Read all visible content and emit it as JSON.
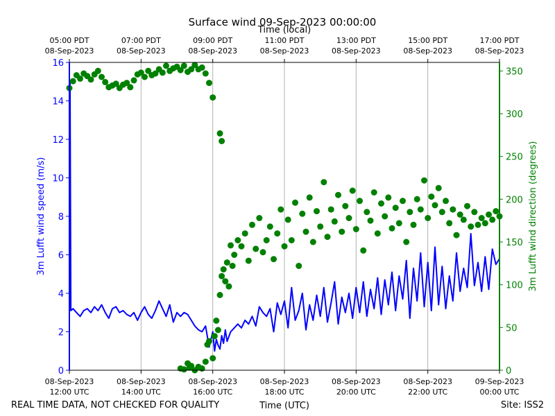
{
  "chart_data": {
    "type": "line+scatter",
    "title": "Surface wind 09-Sep-2023 00:00:00",
    "xlabel_bottom": "Time (UTC)",
    "xlabel_top": "Time (local)",
    "ylabel_left": "3m Lufft wind speed (m/s)",
    "ylabel_right": "3m Lufft wind direction (degrees)",
    "footer_left": "REAL TIME DATA, NOT CHECKED FOR QUALITY",
    "footer_right": "Site: ISS2",
    "colors": {
      "speed": "#0000ff",
      "direction": "#008000",
      "grid": "#b0b0b0",
      "axis": "#000000"
    },
    "x_range_hours": [
      12,
      24
    ],
    "ylim_left": [
      0,
      16
    ],
    "ylim_right": [
      0,
      360
    ],
    "y_ticks_left": [
      0,
      2,
      4,
      6,
      8,
      10,
      12,
      14,
      16
    ],
    "y_ticks_right": [
      0,
      50,
      100,
      150,
      200,
      250,
      300,
      350
    ],
    "x_ticks_bottom": [
      {
        "h": 12,
        "l1": "08-Sep-2023",
        "l2": "12:00 UTC"
      },
      {
        "h": 14,
        "l1": "08-Sep-2023",
        "l2": "14:00 UTC"
      },
      {
        "h": 16,
        "l1": "08-Sep-2023",
        "l2": "16:00 UTC"
      },
      {
        "h": 18,
        "l1": "08-Sep-2023",
        "l2": "18:00 UTC"
      },
      {
        "h": 20,
        "l1": "08-Sep-2023",
        "l2": "20:00 UTC"
      },
      {
        "h": 22,
        "l1": "08-Sep-2023",
        "l2": "22:00 UTC"
      },
      {
        "h": 24,
        "l1": "09-Sep-2023",
        "l2": "00:00 UTC"
      }
    ],
    "x_ticks_top": [
      {
        "h": 12,
        "l1": "05:00 PDT",
        "l2": "08-Sep-2023"
      },
      {
        "h": 14,
        "l1": "07:00 PDT",
        "l2": "08-Sep-2023"
      },
      {
        "h": 16,
        "l1": "09:00 PDT",
        "l2": "08-Sep-2023"
      },
      {
        "h": 18,
        "l1": "11:00 PDT",
        "l2": "08-Sep-2023"
      },
      {
        "h": 20,
        "l1": "13:00 PDT",
        "l2": "08-Sep-2023"
      },
      {
        "h": 22,
        "l1": "15:00 PDT",
        "l2": "08-Sep-2023"
      },
      {
        "h": 24,
        "l1": "17:00 PDT",
        "l2": "08-Sep-2023"
      }
    ],
    "series": [
      {
        "name": "3m Lufft wind speed",
        "axis": "left",
        "style": "line",
        "points": [
          [
            12.0,
            14.8
          ],
          [
            12.02,
            14.9
          ],
          [
            12.04,
            3.1
          ],
          [
            12.1,
            3.2
          ],
          [
            12.2,
            3.0
          ],
          [
            12.3,
            2.8
          ],
          [
            12.4,
            3.1
          ],
          [
            12.5,
            3.2
          ],
          [
            12.6,
            3.0
          ],
          [
            12.7,
            3.3
          ],
          [
            12.8,
            3.1
          ],
          [
            12.9,
            3.4
          ],
          [
            13.0,
            3.0
          ],
          [
            13.1,
            2.7
          ],
          [
            13.2,
            3.2
          ],
          [
            13.3,
            3.3
          ],
          [
            13.4,
            3.0
          ],
          [
            13.5,
            3.1
          ],
          [
            13.6,
            2.9
          ],
          [
            13.7,
            2.8
          ],
          [
            13.8,
            3.0
          ],
          [
            13.9,
            2.6
          ],
          [
            14.0,
            3.0
          ],
          [
            14.1,
            3.3
          ],
          [
            14.2,
            2.9
          ],
          [
            14.3,
            2.7
          ],
          [
            14.4,
            3.1
          ],
          [
            14.5,
            3.6
          ],
          [
            14.6,
            3.2
          ],
          [
            14.7,
            2.8
          ],
          [
            14.8,
            3.4
          ],
          [
            14.9,
            2.5
          ],
          [
            15.0,
            3.0
          ],
          [
            15.1,
            2.8
          ],
          [
            15.2,
            3.0
          ],
          [
            15.3,
            2.9
          ],
          [
            15.4,
            2.6
          ],
          [
            15.5,
            2.3
          ],
          [
            15.6,
            2.1
          ],
          [
            15.7,
            2.0
          ],
          [
            15.8,
            2.3
          ],
          [
            15.9,
            1.2
          ],
          [
            16.0,
            2.0
          ],
          [
            16.05,
            1.0
          ],
          [
            16.1,
            1.6
          ],
          [
            16.15,
            1.3
          ],
          [
            16.2,
            1.1
          ],
          [
            16.25,
            1.8
          ],
          [
            16.3,
            1.4
          ],
          [
            16.35,
            2.1
          ],
          [
            16.4,
            1.5
          ],
          [
            16.5,
            2.0
          ],
          [
            16.6,
            2.2
          ],
          [
            16.7,
            2.4
          ],
          [
            16.8,
            2.2
          ],
          [
            16.9,
            2.6
          ],
          [
            17.0,
            2.4
          ],
          [
            17.1,
            2.8
          ],
          [
            17.2,
            2.3
          ],
          [
            17.3,
            3.3
          ],
          [
            17.4,
            3.0
          ],
          [
            17.5,
            2.8
          ],
          [
            17.6,
            3.2
          ],
          [
            17.7,
            2.0
          ],
          [
            17.8,
            3.5
          ],
          [
            17.9,
            2.9
          ],
          [
            18.0,
            3.6
          ],
          [
            18.1,
            2.2
          ],
          [
            18.2,
            4.3
          ],
          [
            18.3,
            2.6
          ],
          [
            18.4,
            3.1
          ],
          [
            18.5,
            4.0
          ],
          [
            18.6,
            2.1
          ],
          [
            18.7,
            3.4
          ],
          [
            18.8,
            2.6
          ],
          [
            18.9,
            3.9
          ],
          [
            19.0,
            2.8
          ],
          [
            19.1,
            4.3
          ],
          [
            19.2,
            2.5
          ],
          [
            19.3,
            3.5
          ],
          [
            19.4,
            4.6
          ],
          [
            19.5,
            2.4
          ],
          [
            19.6,
            3.8
          ],
          [
            19.7,
            3.0
          ],
          [
            19.8,
            4.0
          ],
          [
            19.9,
            2.7
          ],
          [
            20.0,
            4.3
          ],
          [
            20.1,
            3.0
          ],
          [
            20.2,
            4.6
          ],
          [
            20.3,
            2.8
          ],
          [
            20.4,
            4.2
          ],
          [
            20.5,
            3.2
          ],
          [
            20.6,
            4.8
          ],
          [
            20.7,
            2.9
          ],
          [
            20.8,
            4.7
          ],
          [
            20.9,
            3.4
          ],
          [
            21.0,
            5.1
          ],
          [
            21.1,
            3.1
          ],
          [
            21.2,
            4.9
          ],
          [
            21.3,
            3.7
          ],
          [
            21.4,
            5.7
          ],
          [
            21.5,
            2.7
          ],
          [
            21.6,
            5.3
          ],
          [
            21.7,
            3.6
          ],
          [
            21.8,
            6.1
          ],
          [
            21.9,
            3.3
          ],
          [
            22.0,
            5.6
          ],
          [
            22.1,
            3.1
          ],
          [
            22.2,
            6.4
          ],
          [
            22.3,
            3.4
          ],
          [
            22.4,
            5.4
          ],
          [
            22.5,
            3.2
          ],
          [
            22.6,
            4.9
          ],
          [
            22.7,
            3.6
          ],
          [
            22.8,
            6.1
          ],
          [
            22.9,
            4.1
          ],
          [
            23.0,
            5.3
          ],
          [
            23.1,
            4.3
          ],
          [
            23.2,
            7.1
          ],
          [
            23.3,
            4.4
          ],
          [
            23.4,
            5.6
          ],
          [
            23.5,
            4.1
          ],
          [
            23.6,
            5.9
          ],
          [
            23.7,
            4.2
          ],
          [
            23.8,
            6.3
          ],
          [
            23.9,
            5.5
          ],
          [
            24.0,
            5.8
          ]
        ]
      },
      {
        "name": "3m Lufft wind direction",
        "axis": "right",
        "style": "scatter",
        "points": [
          [
            12.0,
            330
          ],
          [
            12.1,
            338
          ],
          [
            12.2,
            345
          ],
          [
            12.3,
            341
          ],
          [
            12.4,
            347
          ],
          [
            12.5,
            344
          ],
          [
            12.6,
            340
          ],
          [
            12.7,
            346
          ],
          [
            12.8,
            350
          ],
          [
            12.9,
            343
          ],
          [
            13.0,
            337
          ],
          [
            13.1,
            331
          ],
          [
            13.2,
            333
          ],
          [
            13.3,
            335
          ],
          [
            13.4,
            330
          ],
          [
            13.5,
            334
          ],
          [
            13.6,
            336
          ],
          [
            13.7,
            331
          ],
          [
            13.8,
            339
          ],
          [
            13.9,
            346
          ],
          [
            14.0,
            348
          ],
          [
            14.1,
            343
          ],
          [
            14.2,
            350
          ],
          [
            14.3,
            345
          ],
          [
            14.4,
            347
          ],
          [
            14.5,
            352
          ],
          [
            14.6,
            348
          ],
          [
            14.7,
            356
          ],
          [
            14.8,
            350
          ],
          [
            14.9,
            353
          ],
          [
            15.0,
            355
          ],
          [
            15.1,
            351
          ],
          [
            15.2,
            356
          ],
          [
            15.3,
            349
          ],
          [
            15.4,
            352
          ],
          [
            15.5,
            357
          ],
          [
            15.6,
            352
          ],
          [
            15.7,
            354
          ],
          [
            15.8,
            347
          ],
          [
            15.9,
            336
          ],
          [
            16.0,
            319
          ],
          [
            16.2,
            277
          ],
          [
            16.25,
            268
          ],
          [
            15.1,
            2
          ],
          [
            15.2,
            1
          ],
          [
            15.3,
            8
          ],
          [
            15.35,
            3
          ],
          [
            15.4,
            5
          ],
          [
            15.5,
            0
          ],
          [
            15.6,
            4
          ],
          [
            15.7,
            2
          ],
          [
            15.8,
            10
          ],
          [
            15.85,
            30
          ],
          [
            15.9,
            34
          ],
          [
            16.0,
            14
          ],
          [
            16.05,
            40
          ],
          [
            16.1,
            58
          ],
          [
            16.15,
            47
          ],
          [
            16.2,
            88
          ],
          [
            16.25,
            110
          ],
          [
            16.3,
            118
          ],
          [
            16.35,
            104
          ],
          [
            16.4,
            126
          ],
          [
            16.45,
            98
          ],
          [
            16.5,
            146
          ],
          [
            16.55,
            122
          ],
          [
            16.6,
            135
          ],
          [
            16.7,
            152
          ],
          [
            16.8,
            145
          ],
          [
            16.9,
            160
          ],
          [
            17.0,
            128
          ],
          [
            17.1,
            170
          ],
          [
            17.2,
            142
          ],
          [
            17.3,
            178
          ],
          [
            17.4,
            138
          ],
          [
            17.5,
            152
          ],
          [
            17.6,
            168
          ],
          [
            17.7,
            130
          ],
          [
            17.8,
            160
          ],
          [
            17.9,
            188
          ],
          [
            18.0,
            145
          ],
          [
            18.1,
            176
          ],
          [
            18.2,
            152
          ],
          [
            18.3,
            196
          ],
          [
            18.4,
            122
          ],
          [
            18.5,
            183
          ],
          [
            18.6,
            162
          ],
          [
            18.7,
            202
          ],
          [
            18.8,
            150
          ],
          [
            18.9,
            186
          ],
          [
            19.0,
            168
          ],
          [
            19.1,
            220
          ],
          [
            19.2,
            156
          ],
          [
            19.3,
            188
          ],
          [
            19.4,
            174
          ],
          [
            19.5,
            205
          ],
          [
            19.6,
            162
          ],
          [
            19.7,
            192
          ],
          [
            19.8,
            178
          ],
          [
            19.9,
            210
          ],
          [
            20.0,
            165
          ],
          [
            20.1,
            198
          ],
          [
            20.2,
            140
          ],
          [
            20.3,
            185
          ],
          [
            20.4,
            175
          ],
          [
            20.5,
            208
          ],
          [
            20.6,
            160
          ],
          [
            20.7,
            195
          ],
          [
            20.8,
            180
          ],
          [
            20.9,
            202
          ],
          [
            21.0,
            166
          ],
          [
            21.1,
            190
          ],
          [
            21.2,
            172
          ],
          [
            21.3,
            198
          ],
          [
            21.4,
            150
          ],
          [
            21.5,
            185
          ],
          [
            21.6,
            170
          ],
          [
            21.7,
            200
          ],
          [
            21.8,
            188
          ],
          [
            21.9,
            222
          ],
          [
            22.0,
            178
          ],
          [
            22.1,
            203
          ],
          [
            22.2,
            193
          ],
          [
            22.3,
            213
          ],
          [
            22.4,
            185
          ],
          [
            22.5,
            198
          ],
          [
            22.6,
            172
          ],
          [
            22.7,
            188
          ],
          [
            22.8,
            158
          ],
          [
            22.9,
            182
          ],
          [
            23.0,
            176
          ],
          [
            23.1,
            192
          ],
          [
            23.2,
            168
          ],
          [
            23.3,
            185
          ],
          [
            23.4,
            170
          ],
          [
            23.5,
            178
          ],
          [
            23.6,
            172
          ],
          [
            23.7,
            182
          ],
          [
            23.8,
            176
          ],
          [
            23.9,
            186
          ],
          [
            24.0,
            180
          ]
        ]
      }
    ]
  }
}
